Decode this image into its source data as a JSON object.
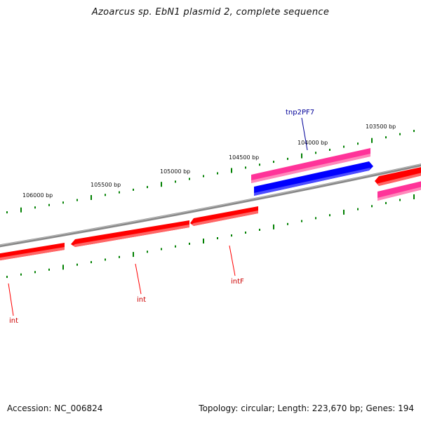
{
  "title": "Azoarcus sp. EbN1 plasmid 2, complete sequence",
  "footer": {
    "accession": "Accession: NC_006824",
    "stats": "Topology: circular; Length: 223,670 bp; Genes: 194"
  },
  "tick_labels": [
    "106000 bp",
    "105500 bp",
    "105000 bp",
    "104500 bp",
    "104000 bp",
    "103500 bp"
  ],
  "genes": [
    {
      "name": "int",
      "strand": "reverse",
      "color": "#ff0000",
      "labeled": true
    },
    {
      "name": "int",
      "strand": "reverse",
      "color": "#ff0000",
      "labeled": true
    },
    {
      "name": "intF",
      "strand": "reverse",
      "color": "#ff0000",
      "labeled": true
    },
    {
      "name": "tnp2PF7",
      "strand": "forward",
      "color": "#ff3399",
      "labeled": true
    },
    {
      "name": "",
      "strand": "forward",
      "color": "#0000ff",
      "labeled": false
    },
    {
      "name": "",
      "strand": "forward",
      "color": "#ff3399",
      "labeled": false
    },
    {
      "name": "",
      "strand": "reverse",
      "color": "#ff0000",
      "labeled": false
    }
  ],
  "colors": {
    "backbone": "#888888",
    "ticks": "#008000",
    "gene_red": "#ff0000",
    "gene_pink": "#ff3399",
    "gene_blue": "#0000ff",
    "label_blue": "#000099",
    "label_red": "#cc0000"
  }
}
